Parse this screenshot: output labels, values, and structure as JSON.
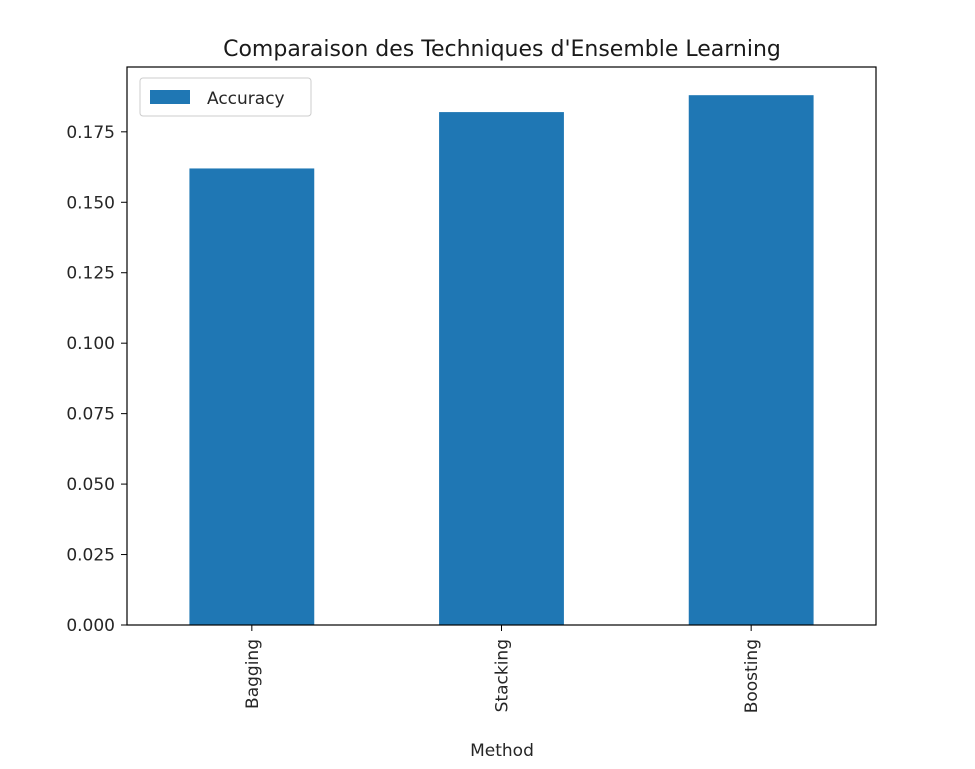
{
  "chart_data": {
    "type": "bar",
    "title": "Comparaison des Techniques d'Ensemble Learning",
    "xlabel": "Method",
    "ylabel": "",
    "categories": [
      "Bagging",
      "Stacking",
      "Boosting"
    ],
    "series": [
      {
        "name": "Accuracy",
        "values": [
          0.162,
          0.182,
          0.188
        ],
        "color": "#1f77b4"
      }
    ],
    "ylim": [
      0,
      0.198
    ],
    "yticks": [
      0.0,
      0.025,
      0.05,
      0.075,
      0.1,
      0.125,
      0.15,
      0.175
    ],
    "ytick_labels": [
      "0.000",
      "0.025",
      "0.050",
      "0.075",
      "0.100",
      "0.125",
      "0.150",
      "0.175"
    ],
    "grid": false,
    "legend": {
      "position": "top-left",
      "entries": [
        "Accuracy"
      ]
    },
    "xtick_rotation": "vertical"
  }
}
